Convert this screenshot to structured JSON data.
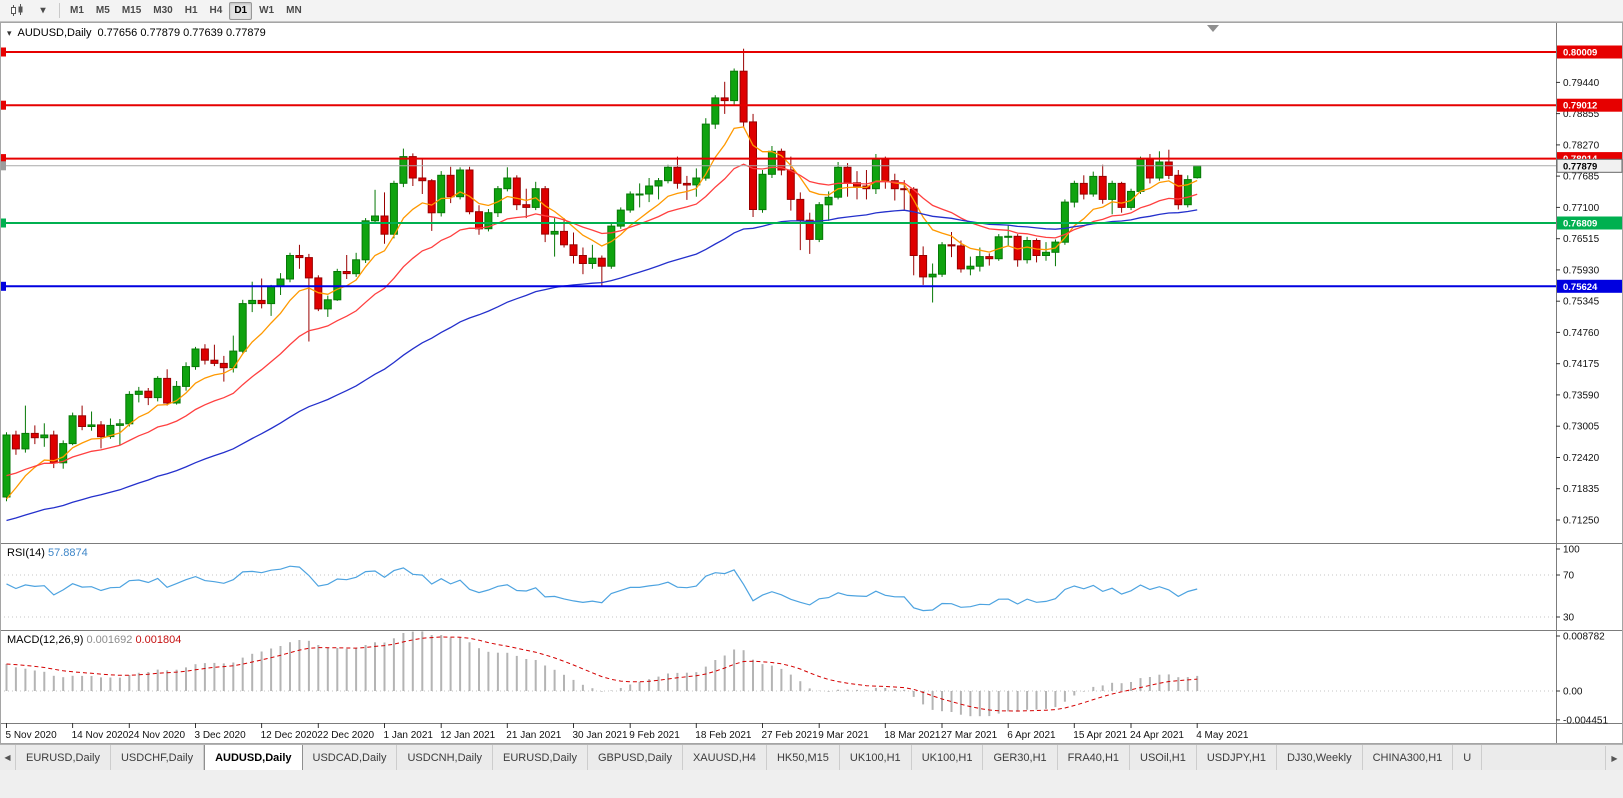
{
  "toolbar": {
    "timeframes": [
      "M1",
      "M5",
      "M15",
      "M30",
      "H1",
      "H4",
      "D1",
      "W1",
      "MN"
    ],
    "active": "D1"
  },
  "icons": {
    "caret_down": "▾",
    "scroll_left": "◀",
    "scroll_right": "▶"
  },
  "chart_header": {
    "symbol": "AUDUSD,Daily",
    "ohlc": "0.77656 0.77879 0.77639 0.77879"
  },
  "price_scale": {
    "ticks": [
      "0.79440",
      "0.78855",
      "0.78270",
      "0.77685",
      "0.77100",
      "0.76515",
      "0.75930",
      "0.75345",
      "0.74760",
      "0.74175",
      "0.73590",
      "0.73005",
      "0.72420",
      "0.71835",
      "0.71250"
    ],
    "current": "0.77879",
    "current_value": 0.77879
  },
  "levels": [
    {
      "label": "0.80009",
      "value": 0.80009,
      "color": "#E60000"
    },
    {
      "label": "0.79012",
      "value": 0.79012,
      "color": "#E60000"
    },
    {
      "label": "0.78014",
      "value": 0.78014,
      "color": "#E60000"
    },
    {
      "label": "0.76809",
      "value": 0.76809,
      "color": "#00B050"
    },
    {
      "label": "0.75624",
      "value": 0.75624,
      "color": "#0000E0"
    }
  ],
  "rsi_panel": {
    "title": "RSI(14)",
    "value": "57.8874",
    "scale": [
      "100",
      "70",
      "30"
    ],
    "dotted_levels": [
      70,
      30
    ]
  },
  "macd_panel": {
    "title": "MACD(12,26,9)",
    "value_main": "0.001692",
    "value_signal": "0.001804",
    "scale": [
      "0.008782",
      "0.00",
      "-0.004451"
    ]
  },
  "time_axis": {
    "labels": [
      "5 Nov 2020",
      "14 Nov 2020",
      "24 Nov 2020",
      "3 Dec 2020",
      "12 Dec 2020",
      "22 Dec 2020",
      "1 Jan 2021",
      "12 Jan 2021",
      "21 Jan 2021",
      "30 Jan 2021",
      "9 Feb 2021",
      "18 Feb 2021",
      "27 Feb 2021",
      "9 Mar 2021",
      "18 Mar 2021",
      "27 Mar 2021",
      "6 Apr 2021",
      "15 Apr 2021",
      "24 Apr 2021",
      "4 May 2021"
    ],
    "indices": [
      0,
      7,
      13,
      20,
      27,
      33,
      40,
      46,
      53,
      60,
      66,
      73,
      80,
      86,
      93,
      99,
      106,
      113,
      119,
      126
    ]
  },
  "tabs": {
    "items": [
      "EURUSD,Daily",
      "USDCHF,Daily",
      "AUDUSD,Daily",
      "USDCAD,Daily",
      "USDCNH,Daily",
      "EURUSD,Daily",
      "GBPUSD,Daily",
      "XAUUSD,H4",
      "HK50,M15",
      "UK100,H1",
      "UK100,H1",
      "GER30,H1",
      "FRA40,H1",
      "USOil,H1",
      "USDJPY,H1",
      "DJ30,Weekly",
      "CHINA300,H1",
      "U"
    ],
    "active_index": 2
  },
  "chart_data": {
    "type": "candlestick",
    "symbol": "AUDUSD",
    "timeframe": "Daily",
    "colors": {
      "up": "#0FA30F",
      "up_border": "#067806",
      "down": "#DE0000",
      "down_border": "#990000"
    },
    "moving_averages": [
      {
        "period": 8,
        "seed": 0.713,
        "color": "#FF9900"
      },
      {
        "period": 20,
        "seed": 0.72,
        "color": "#FF4040"
      },
      {
        "period": 55,
        "seed": 0.7118,
        "color": "#2430CC"
      }
    ],
    "rsi": {
      "period": 14,
      "color": "#4DA3E0",
      "seed_gain": 0.0016,
      "seed_loss": 0.001
    },
    "macd": {
      "fast": 12,
      "slow": 26,
      "signal": 9,
      "seed_offset": 0.0045,
      "histogram_color": "#B4B4B4",
      "signal_color": "#D40000"
    },
    "candles": [
      [
        0.7168,
        0.7289,
        0.716,
        0.7284
      ],
      [
        0.7284,
        0.7292,
        0.7247,
        0.7258
      ],
      [
        0.7258,
        0.7339,
        0.7251,
        0.7287
      ],
      [
        0.7287,
        0.7302,
        0.7267,
        0.7279
      ],
      [
        0.7279,
        0.7306,
        0.7262,
        0.7284
      ],
      [
        0.7284,
        0.7292,
        0.7222,
        0.7232
      ],
      [
        0.7232,
        0.7274,
        0.7221,
        0.7268
      ],
      [
        0.7268,
        0.7326,
        0.7265,
        0.732
      ],
      [
        0.732,
        0.7339,
        0.7293,
        0.73
      ],
      [
        0.73,
        0.7328,
        0.7292,
        0.7303
      ],
      [
        0.7303,
        0.731,
        0.7259,
        0.7281
      ],
      [
        0.7281,
        0.7315,
        0.7277,
        0.7302
      ],
      [
        0.7302,
        0.7314,
        0.7265,
        0.7305
      ],
      [
        0.7305,
        0.7366,
        0.73,
        0.736
      ],
      [
        0.736,
        0.7374,
        0.7345,
        0.7366
      ],
      [
        0.7366,
        0.7372,
        0.734,
        0.7354
      ],
      [
        0.7354,
        0.7394,
        0.7347,
        0.739
      ],
      [
        0.739,
        0.7407,
        0.7339,
        0.7344
      ],
      [
        0.7344,
        0.7385,
        0.7341,
        0.7375
      ],
      [
        0.7375,
        0.742,
        0.7367,
        0.7412
      ],
      [
        0.7412,
        0.7449,
        0.7406,
        0.7445
      ],
      [
        0.7445,
        0.7454,
        0.7416,
        0.7424
      ],
      [
        0.7424,
        0.7453,
        0.7413,
        0.7418
      ],
      [
        0.7418,
        0.7432,
        0.7384,
        0.741
      ],
      [
        0.741,
        0.747,
        0.7401,
        0.7441
      ],
      [
        0.7441,
        0.7537,
        0.7437,
        0.753
      ],
      [
        0.753,
        0.7571,
        0.7514,
        0.7536
      ],
      [
        0.7536,
        0.7577,
        0.7521,
        0.753
      ],
      [
        0.753,
        0.7565,
        0.7507,
        0.7562
      ],
      [
        0.7562,
        0.7587,
        0.7546,
        0.7576
      ],
      [
        0.7576,
        0.7625,
        0.757,
        0.762
      ],
      [
        0.762,
        0.764,
        0.7595,
        0.7616
      ],
      [
        0.7616,
        0.7623,
        0.7459,
        0.7578
      ],
      [
        0.7578,
        0.7583,
        0.7516,
        0.752
      ],
      [
        0.752,
        0.7545,
        0.7505,
        0.7537
      ],
      [
        0.7537,
        0.7595,
        0.7535,
        0.759
      ],
      [
        0.759,
        0.7621,
        0.7576,
        0.7586
      ],
      [
        0.7586,
        0.7625,
        0.758,
        0.7612
      ],
      [
        0.7612,
        0.769,
        0.7606,
        0.7685
      ],
      [
        0.7685,
        0.7743,
        0.768,
        0.7694
      ],
      [
        0.7694,
        0.7738,
        0.7642,
        0.766
      ],
      [
        0.766,
        0.776,
        0.7652,
        0.7755
      ],
      [
        0.7755,
        0.782,
        0.7748,
        0.7805
      ],
      [
        0.7805,
        0.7811,
        0.775,
        0.7765
      ],
      [
        0.7765,
        0.78,
        0.7735,
        0.776
      ],
      [
        0.776,
        0.7763,
        0.7666,
        0.77
      ],
      [
        0.77,
        0.7778,
        0.7693,
        0.777
      ],
      [
        0.777,
        0.7786,
        0.7718,
        0.773
      ],
      [
        0.773,
        0.7785,
        0.7725,
        0.778
      ],
      [
        0.778,
        0.7786,
        0.7697,
        0.7702
      ],
      [
        0.7702,
        0.7714,
        0.7659,
        0.767
      ],
      [
        0.767,
        0.7707,
        0.7665,
        0.77
      ],
      [
        0.77,
        0.775,
        0.7692,
        0.7745
      ],
      [
        0.7745,
        0.7785,
        0.774,
        0.7765
      ],
      [
        0.7765,
        0.777,
        0.7705,
        0.7715
      ],
      [
        0.7715,
        0.7745,
        0.769,
        0.771
      ],
      [
        0.771,
        0.7758,
        0.7705,
        0.7745
      ],
      [
        0.7745,
        0.775,
        0.7645,
        0.766
      ],
      [
        0.766,
        0.769,
        0.7618,
        0.7665
      ],
      [
        0.7665,
        0.769,
        0.7635,
        0.764
      ],
      [
        0.764,
        0.7663,
        0.7605,
        0.762
      ],
      [
        0.762,
        0.7635,
        0.7585,
        0.7605
      ],
      [
        0.7605,
        0.764,
        0.7595,
        0.7615
      ],
      [
        0.7615,
        0.762,
        0.7562,
        0.76
      ],
      [
        0.76,
        0.768,
        0.7595,
        0.7675
      ],
      [
        0.7675,
        0.771,
        0.767,
        0.7705
      ],
      [
        0.7705,
        0.774,
        0.77,
        0.7735
      ],
      [
        0.7735,
        0.7755,
        0.771,
        0.7735
      ],
      [
        0.7735,
        0.7765,
        0.772,
        0.775
      ],
      [
        0.775,
        0.7765,
        0.7725,
        0.776
      ],
      [
        0.776,
        0.779,
        0.7755,
        0.7785
      ],
      [
        0.7785,
        0.7805,
        0.7745,
        0.7755
      ],
      [
        0.7755,
        0.7769,
        0.7724,
        0.7752
      ],
      [
        0.7752,
        0.7783,
        0.773,
        0.7765
      ],
      [
        0.7765,
        0.7877,
        0.776,
        0.7866
      ],
      [
        0.7866,
        0.792,
        0.7857,
        0.7915
      ],
      [
        0.7915,
        0.7945,
        0.7885,
        0.791
      ],
      [
        0.791,
        0.797,
        0.79,
        0.7965
      ],
      [
        0.7965,
        0.8007,
        0.786,
        0.787
      ],
      [
        0.787,
        0.7885,
        0.7692,
        0.7706
      ],
      [
        0.7706,
        0.778,
        0.77,
        0.7772
      ],
      [
        0.7772,
        0.7825,
        0.7765,
        0.7815
      ],
      [
        0.7815,
        0.782,
        0.777,
        0.778
      ],
      [
        0.778,
        0.7805,
        0.7704,
        0.7725
      ],
      [
        0.7725,
        0.7738,
        0.763,
        0.7686
      ],
      [
        0.7686,
        0.77,
        0.7623,
        0.765
      ],
      [
        0.765,
        0.772,
        0.7645,
        0.7715
      ],
      [
        0.7715,
        0.774,
        0.7685,
        0.7729
      ],
      [
        0.7729,
        0.7795,
        0.7725,
        0.7785
      ],
      [
        0.7785,
        0.7793,
        0.773,
        0.7756
      ],
      [
        0.7756,
        0.7778,
        0.7725,
        0.775
      ],
      [
        0.775,
        0.778,
        0.7725,
        0.7745
      ],
      [
        0.7745,
        0.781,
        0.7735,
        0.78
      ],
      [
        0.78,
        0.7805,
        0.7745,
        0.776
      ],
      [
        0.776,
        0.7773,
        0.7723,
        0.7745
      ],
      [
        0.7745,
        0.7761,
        0.7706,
        0.7744
      ],
      [
        0.7744,
        0.7748,
        0.7583,
        0.762
      ],
      [
        0.762,
        0.7637,
        0.7565,
        0.758
      ],
      [
        0.758,
        0.7605,
        0.7532,
        0.7585
      ],
      [
        0.7585,
        0.7645,
        0.758,
        0.764
      ],
      [
        0.764,
        0.7664,
        0.7617,
        0.7638
      ],
      [
        0.7638,
        0.7648,
        0.7588,
        0.7595
      ],
      [
        0.7595,
        0.7618,
        0.7583,
        0.76
      ],
      [
        0.76,
        0.7635,
        0.759,
        0.7618
      ],
      [
        0.7618,
        0.7624,
        0.7601,
        0.7614
      ],
      [
        0.7614,
        0.766,
        0.761,
        0.7655
      ],
      [
        0.7655,
        0.7677,
        0.7637,
        0.7656
      ],
      [
        0.7656,
        0.766,
        0.7599,
        0.7612
      ],
      [
        0.7612,
        0.7655,
        0.7605,
        0.7648
      ],
      [
        0.7648,
        0.7652,
        0.7607,
        0.762
      ],
      [
        0.762,
        0.7645,
        0.761,
        0.7626
      ],
      [
        0.7626,
        0.765,
        0.76,
        0.7645
      ],
      [
        0.7645,
        0.7725,
        0.764,
        0.772
      ],
      [
        0.772,
        0.776,
        0.771,
        0.7755
      ],
      [
        0.7755,
        0.777,
        0.7725,
        0.7735
      ],
      [
        0.7735,
        0.7777,
        0.773,
        0.7768
      ],
      [
        0.7768,
        0.779,
        0.7717,
        0.7725
      ],
      [
        0.7725,
        0.776,
        0.7697,
        0.7755
      ],
      [
        0.7755,
        0.7758,
        0.77,
        0.771
      ],
      [
        0.771,
        0.7745,
        0.7705,
        0.774
      ],
      [
        0.774,
        0.7805,
        0.7735,
        0.78
      ],
      [
        0.78,
        0.781,
        0.7755,
        0.7765
      ],
      [
        0.7765,
        0.7815,
        0.776,
        0.7795
      ],
      [
        0.7795,
        0.7818,
        0.7763,
        0.777
      ],
      [
        0.777,
        0.778,
        0.7706,
        0.7715
      ],
      [
        0.7715,
        0.777,
        0.771,
        0.7762
      ],
      [
        0.77656,
        0.77879,
        0.77639,
        0.77879
      ]
    ]
  }
}
